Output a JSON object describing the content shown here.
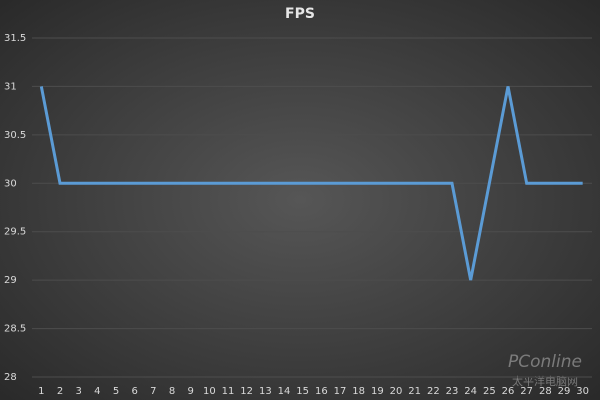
{
  "chart_data": {
    "type": "line",
    "title": "FPS",
    "categories": [
      1,
      2,
      3,
      4,
      5,
      6,
      7,
      8,
      9,
      10,
      11,
      12,
      13,
      14,
      15,
      16,
      17,
      18,
      19,
      20,
      21,
      22,
      23,
      24,
      25,
      26,
      27,
      28,
      29,
      30
    ],
    "series": [
      {
        "name": "FPS",
        "color": "#5b9bd5",
        "values": [
          31,
          30,
          30,
          30,
          30,
          30,
          30,
          30,
          30,
          30,
          30,
          30,
          30,
          30,
          30,
          30,
          30,
          30,
          30,
          30,
          30,
          30,
          30,
          29,
          30,
          31,
          30,
          30,
          30,
          30
        ]
      }
    ],
    "ylim": [
      28,
      31.5
    ],
    "yticks": [
      28,
      28.5,
      29,
      29.5,
      30,
      30.5,
      31,
      31.5
    ],
    "grid": true,
    "watermark": {
      "brand": "PConline",
      "site": "太平洋电脑网"
    }
  }
}
